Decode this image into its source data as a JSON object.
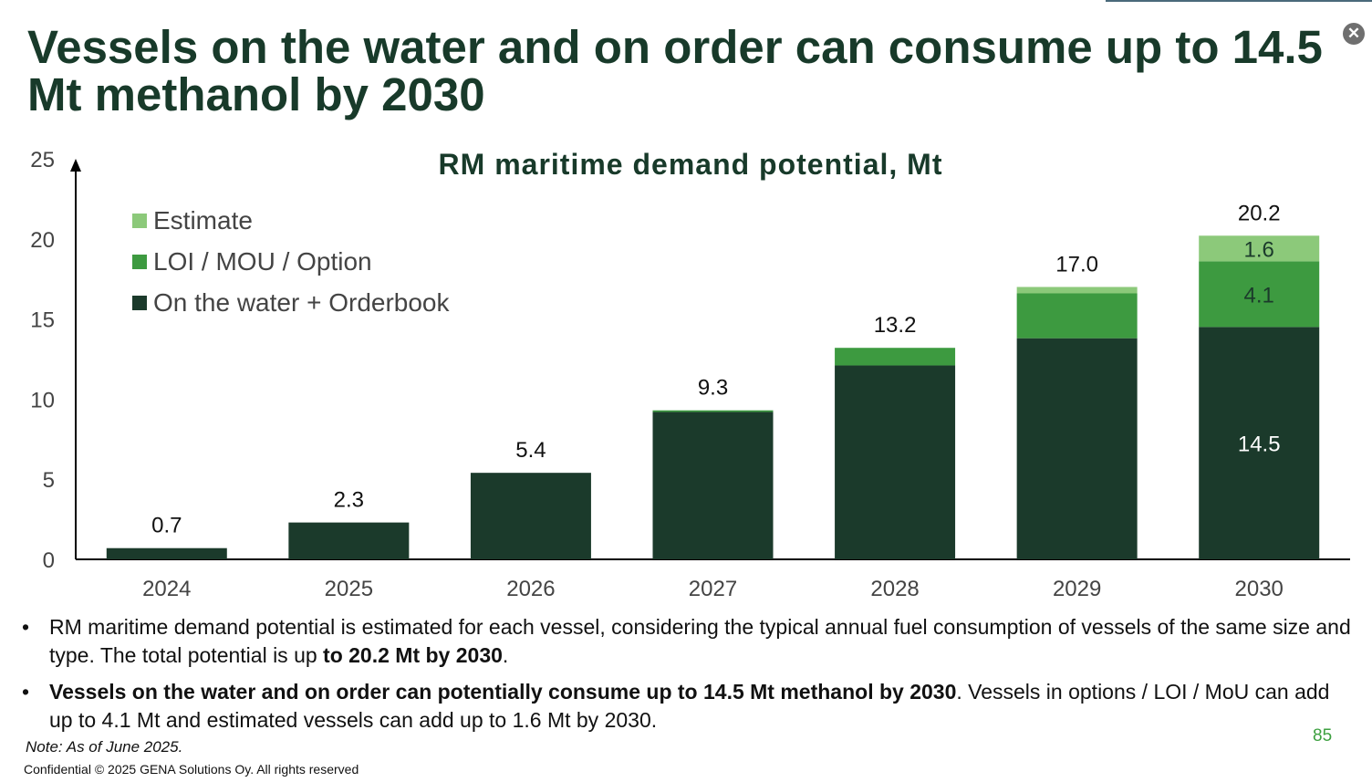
{
  "title": "Vessels on the water and on order can consume up to 14.5 Mt methanol by 2030",
  "close_icon": "close-circle-icon",
  "chart_data": {
    "type": "bar",
    "stacked": true,
    "title": "RM maritime demand potential, Mt",
    "xlabel": "",
    "ylabel": "",
    "ylim": [
      0,
      25
    ],
    "yticks": [
      "0",
      "5",
      "10",
      "15",
      "20",
      "25"
    ],
    "grid": false,
    "legend_position": "top-left",
    "categories": [
      "2024",
      "2025",
      "2026",
      "2027",
      "2028",
      "2029",
      "2030"
    ],
    "series": [
      {
        "name": "On the water + Orderbook",
        "color": "#1b3a2b",
        "values": [
          0.7,
          2.3,
          5.4,
          9.2,
          12.1,
          13.8,
          14.5
        ]
      },
      {
        "name": "LOI / MOU / Option",
        "color": "#3d9a40",
        "values": [
          0,
          0,
          0,
          0.1,
          1.1,
          2.8,
          4.1
        ]
      },
      {
        "name": "Estimate",
        "color": "#8cc97a",
        "values": [
          0,
          0,
          0,
          0,
          0,
          0.4,
          1.6
        ]
      }
    ],
    "totals": [
      "0.7",
      "2.3",
      "5.4",
      "9.3",
      "13.2",
      "17.0",
      "20.2"
    ],
    "segment_labels_2030": [
      "14.5",
      "4.1",
      "1.6"
    ]
  },
  "bullets": [
    {
      "pre": "RM maritime demand potential is estimated for each vessel, considering the typical annual fuel consumption of vessels of the same size and type. The total potential is up ",
      "bold": "to 20.2 Mt by 2030",
      "post": "."
    },
    {
      "pre": "",
      "bold": "Vessels on the water and on order can potentially consume up to 14.5 Mt methanol by 2030",
      "post": ". Vessels in options / LOI / MoU can add up to 4.1 Mt and estimated vessels can add up to 1.6 Mt by 2030."
    }
  ],
  "note": "Note: As of June 2025.",
  "confidential": "Confidential © 2025 GENA Solutions Oy. All rights reserved",
  "page_number": "85"
}
